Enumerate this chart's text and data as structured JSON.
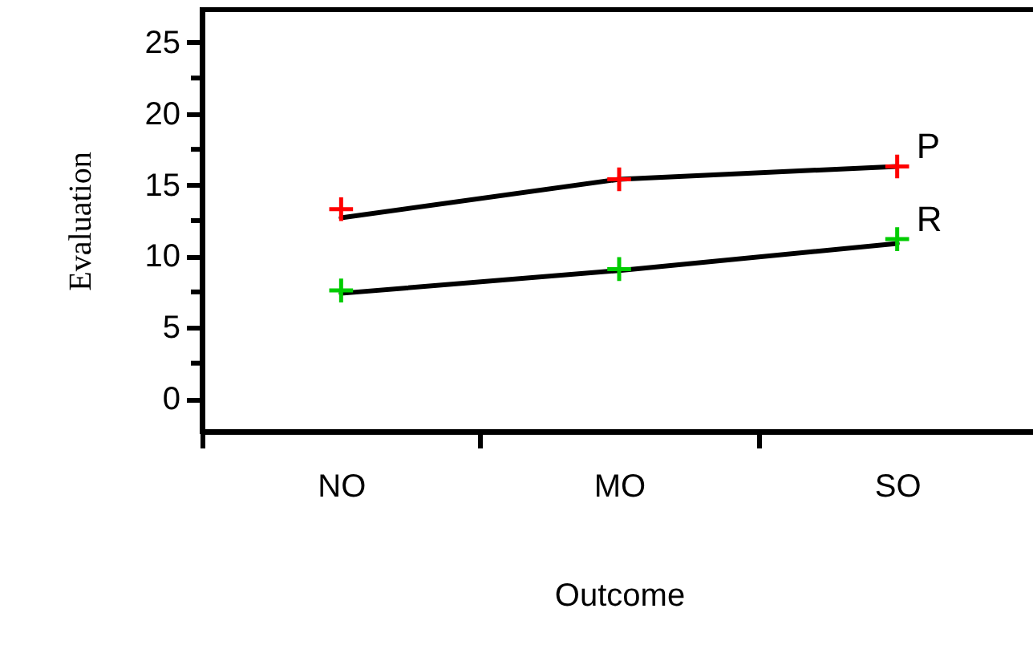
{
  "chart_data": {
    "type": "line",
    "xlabel": "Outcome",
    "ylabel": "Evaluation",
    "categories": [
      "NO",
      "MO",
      "SO"
    ],
    "series": [
      {
        "color": "#000000",
        "values": [
          12.7,
          15.4,
          16.3
        ]
      },
      {
        "color": "#000000",
        "values": [
          7.4,
          9.0,
          10.9
        ]
      },
      {
        "type": "scatter",
        "name": "P",
        "color": "#ff0000",
        "marker": "cross",
        "values": [
          13.3,
          15.4,
          16.3
        ]
      },
      {
        "type": "scatter",
        "name": "R",
        "color": "#00cc00",
        "marker": "cross",
        "values": [
          7.6,
          9.1,
          11.2
        ]
      }
    ],
    "ylim": [
      -2.3,
      27.3
    ],
    "yticks": [
      0,
      {
        "value": 2.5,
        "label": null
      },
      5,
      {
        "value": 7.5,
        "label": null
      },
      10,
      {
        "value": 12.5,
        "label": null
      },
      15,
      {
        "value": 17.5,
        "label": null
      },
      20,
      {
        "value": 22.5,
        "label": null
      },
      25
    ]
  }
}
